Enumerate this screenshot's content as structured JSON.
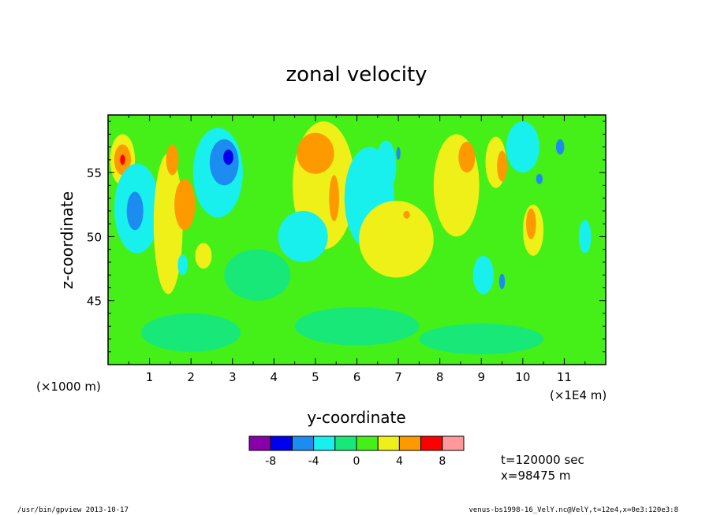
{
  "chart_data": {
    "type": "heatmap",
    "title": "zonal velocity",
    "xlabel": "y-coordinate",
    "ylabel": "z-coordinate",
    "x_unit_note": "(×1E4 m)",
    "y_unit_note": "(×1000 m)",
    "x_ticks": [
      "1",
      "2",
      "3",
      "4",
      "5",
      "6",
      "7",
      "8",
      "9",
      "10",
      "11"
    ],
    "y_ticks": [
      "45",
      "50",
      "55"
    ],
    "xlim": [
      0,
      12
    ],
    "ylim": [
      40,
      59.5
    ],
    "grid": false,
    "colorbar": {
      "colors": [
        "#8800aa",
        "#0000ee",
        "#1c8cf0",
        "#18f0ee",
        "#18e878",
        "#44f018",
        "#eef018",
        "#ff9900",
        "#ff0000",
        "#ff9999"
      ],
      "tick_labels": [
        "-8",
        "-4",
        "0",
        "4",
        "8"
      ],
      "ticks": [
        -8,
        -4,
        0,
        4,
        8
      ]
    },
    "background_level": "#44f018",
    "features": [
      {
        "x": 0.35,
        "y": 56.0,
        "rx": 0.3,
        "ry": 2.0,
        "color": "#eef018"
      },
      {
        "x": 0.35,
        "y": 56.0,
        "rx": 0.2,
        "ry": 1.2,
        "color": "#ff9900"
      },
      {
        "x": 0.35,
        "y": 56.0,
        "rx": 0.06,
        "ry": 0.4,
        "color": "#ff0000"
      },
      {
        "x": 0.7,
        "y": 52.2,
        "rx": 0.55,
        "ry": 3.5,
        "color": "#18f0ee"
      },
      {
        "x": 0.65,
        "y": 52.0,
        "rx": 0.2,
        "ry": 1.5,
        "color": "#1c8cf0"
      },
      {
        "x": 1.45,
        "y": 51.0,
        "rx": 0.35,
        "ry": 5.5,
        "color": "#eef018"
      },
      {
        "x": 1.85,
        "y": 52.5,
        "rx": 0.25,
        "ry": 2.0,
        "color": "#ff9900"
      },
      {
        "x": 1.55,
        "y": 56.0,
        "rx": 0.15,
        "ry": 1.2,
        "color": "#ff9900"
      },
      {
        "x": 2.65,
        "y": 55.0,
        "rx": 0.6,
        "ry": 3.5,
        "color": "#18f0ee"
      },
      {
        "x": 2.8,
        "y": 55.8,
        "rx": 0.35,
        "ry": 1.8,
        "color": "#1c8cf0"
      },
      {
        "x": 2.9,
        "y": 56.2,
        "rx": 0.12,
        "ry": 0.6,
        "color": "#0000ee"
      },
      {
        "x": 2.3,
        "y": 48.5,
        "rx": 0.2,
        "ry": 1.0,
        "color": "#eef018"
      },
      {
        "x": 1.8,
        "y": 47.8,
        "rx": 0.12,
        "ry": 0.8,
        "color": "#18f0ee"
      },
      {
        "x": 5.2,
        "y": 54.0,
        "rx": 0.75,
        "ry": 5.0,
        "color": "#eef018"
      },
      {
        "x": 5.0,
        "y": 56.5,
        "rx": 0.45,
        "ry": 1.6,
        "color": "#ff9900"
      },
      {
        "x": 5.45,
        "y": 53.0,
        "rx": 0.12,
        "ry": 1.8,
        "color": "#ff9900"
      },
      {
        "x": 4.7,
        "y": 50.0,
        "rx": 0.6,
        "ry": 2.0,
        "color": "#18f0ee"
      },
      {
        "x": 6.3,
        "y": 53.0,
        "rx": 0.6,
        "ry": 4.0,
        "color": "#18f0ee"
      },
      {
        "x": 6.7,
        "y": 55.5,
        "rx": 0.25,
        "ry": 2.0,
        "color": "#18f0ee"
      },
      {
        "x": 7.0,
        "y": 56.5,
        "rx": 0.05,
        "ry": 0.5,
        "color": "#1c8cf0"
      },
      {
        "x": 6.95,
        "y": 49.8,
        "rx": 0.9,
        "ry": 3.0,
        "color": "#eef018"
      },
      {
        "x": 7.2,
        "y": 51.7,
        "rx": 0.08,
        "ry": 0.3,
        "color": "#ff9900"
      },
      {
        "x": 8.4,
        "y": 54.0,
        "rx": 0.55,
        "ry": 4.0,
        "color": "#eef018"
      },
      {
        "x": 8.65,
        "y": 56.2,
        "rx": 0.2,
        "ry": 1.2,
        "color": "#ff9900"
      },
      {
        "x": 9.35,
        "y": 55.8,
        "rx": 0.25,
        "ry": 2.0,
        "color": "#eef018"
      },
      {
        "x": 9.5,
        "y": 55.5,
        "rx": 0.12,
        "ry": 1.2,
        "color": "#ff9900"
      },
      {
        "x": 10.25,
        "y": 50.5,
        "rx": 0.25,
        "ry": 2.0,
        "color": "#eef018"
      },
      {
        "x": 10.2,
        "y": 51.0,
        "rx": 0.12,
        "ry": 1.2,
        "color": "#ff9900"
      },
      {
        "x": 10.9,
        "y": 57.0,
        "rx": 0.1,
        "ry": 0.6,
        "color": "#1c8cf0"
      },
      {
        "x": 10.0,
        "y": 57.0,
        "rx": 0.4,
        "ry": 2.0,
        "color": "#18f0ee"
      },
      {
        "x": 9.05,
        "y": 47.0,
        "rx": 0.25,
        "ry": 1.5,
        "color": "#18f0ee"
      },
      {
        "x": 9.5,
        "y": 46.5,
        "rx": 0.07,
        "ry": 0.6,
        "color": "#1c8cf0"
      },
      {
        "x": 11.5,
        "y": 50.0,
        "rx": 0.15,
        "ry": 1.3,
        "color": "#18f0ee"
      },
      {
        "x": 10.4,
        "y": 54.5,
        "rx": 0.08,
        "ry": 0.4,
        "color": "#1c8cf0"
      },
      {
        "x": 3.6,
        "y": 47.0,
        "rx": 0.8,
        "ry": 2.0,
        "color": "#18e878"
      },
      {
        "x": 6.0,
        "y": 43.0,
        "rx": 1.5,
        "ry": 1.5,
        "color": "#18e878"
      },
      {
        "x": 2.0,
        "y": 42.5,
        "rx": 1.2,
        "ry": 1.5,
        "color": "#18e878"
      },
      {
        "x": 9.0,
        "y": 42.0,
        "rx": 1.5,
        "ry": 1.2,
        "color": "#18e878"
      }
    ],
    "annotations": [
      "t=120000 sec",
      "x=98475 m"
    ]
  },
  "footer": {
    "left": "/usr/bin/gpview  2013-10-17",
    "right": "venus-bs1998-16_VelY.nc@VelY,t=12e4,x=0e3:120e3:8"
  }
}
